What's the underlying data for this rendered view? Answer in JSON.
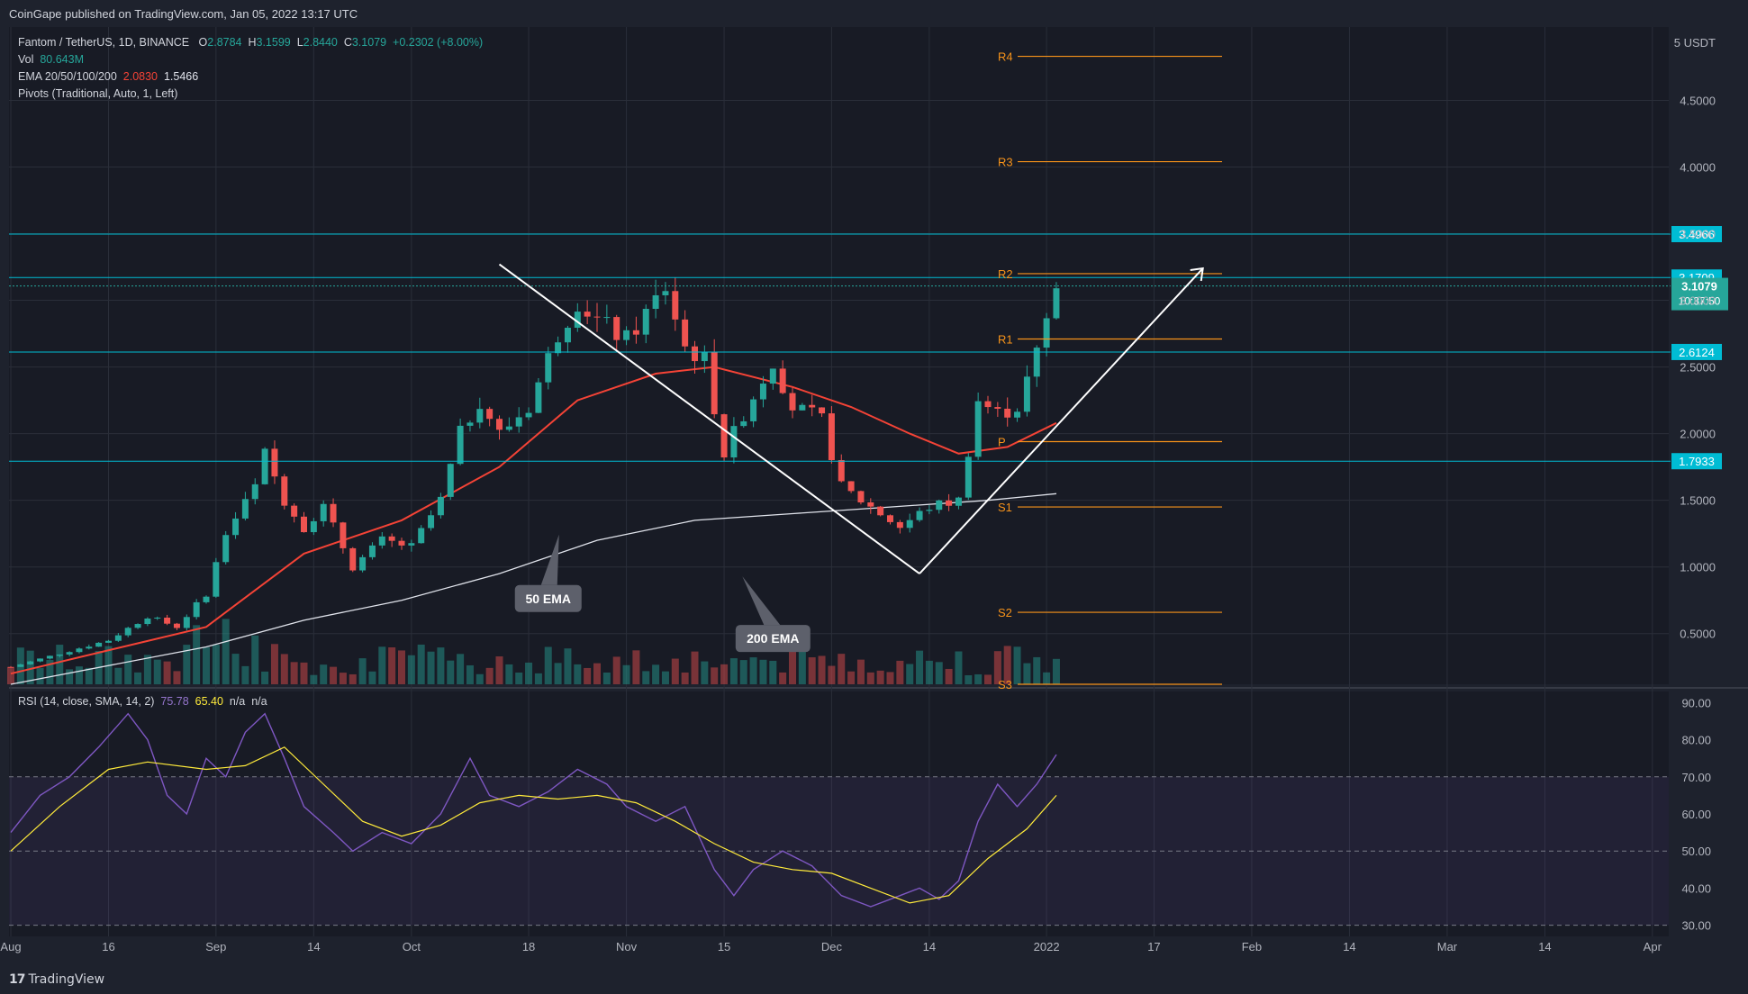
{
  "header": {
    "published": "CoinGape published on TradingView.com, Jan 05, 2022 13:17 UTC"
  },
  "legend": {
    "symbol": "Fantom / TetherUS, 1D, BINANCE",
    "ohlc": {
      "o_label": "O",
      "o": "2.8784",
      "h_label": "H",
      "h": "3.1599",
      "l_label": "L",
      "l": "2.8440",
      "c_label": "C",
      "c": "3.1079",
      "chg": "+0.2302 (+8.00%)"
    },
    "vol_label": "Vol",
    "vol": "80.643M",
    "ema_label": "EMA 20/50/100/200",
    "ema_50": "2.0830",
    "ema_200": "1.5466",
    "pivots": "Pivots (Traditional, Auto, 1, Left)"
  },
  "rsi_legend": {
    "label": "RSI (14, close, SMA, 14, 2)",
    "rsi": "75.78",
    "sma": "65.40",
    "na1": "n/a",
    "na2": "n/a"
  },
  "footer": {
    "brand": "TradingView",
    "logo_glyph": "17"
  },
  "colors": {
    "bg": "#1e222d",
    "up": "#26a69a",
    "down": "#ef5350",
    "ema50": "#f44336",
    "ema200": "#e0e3eb",
    "pivot": "#f7931a",
    "hline": "#00bcd4",
    "rsi": "#7e57c2",
    "rsi_sma": "#ffeb3b",
    "grid": "#2a2e39"
  },
  "chart_data": [
    {
      "type": "candlestick",
      "title": "Fantom / TetherUS, 1D, BINANCE",
      "price_axis": {
        "unit": "USDT",
        "top_label": "5",
        "ticks": [
          "0.5000",
          "1.0000",
          "1.5000",
          "2.0000",
          "2.5000",
          "3.0000",
          "3.5000",
          "4.0000",
          "4.5000"
        ],
        "ylim": [
          0.12,
          5.05
        ]
      },
      "time_axis": {
        "ticks": [
          {
            "label": "Aug",
            "day": 0
          },
          {
            "label": "16",
            "day": 10
          },
          {
            "label": "Sep",
            "day": 21
          },
          {
            "label": "14",
            "day": 31
          },
          {
            "label": "Oct",
            "day": 41
          },
          {
            "label": "18",
            "day": 53
          },
          {
            "label": "Nov",
            "day": 63
          },
          {
            "label": "15",
            "day": 73
          },
          {
            "label": "Dec",
            "day": 84
          },
          {
            "label": "14",
            "day": 94
          },
          {
            "label": "2022",
            "day": 106
          },
          {
            "label": "17",
            "day": 117
          },
          {
            "label": "Feb",
            "day": 127
          },
          {
            "label": "14",
            "day": 137
          },
          {
            "label": "Mar",
            "day": 147
          },
          {
            "label": "14",
            "day": 157
          },
          {
            "label": "Apr",
            "day": 168
          }
        ]
      },
      "key_levels": [
        {
          "label": "3.4966",
          "price": 3.4966
        },
        {
          "label": "3.1709",
          "price": 3.1709
        },
        {
          "label": "2.6124",
          "price": 2.6124
        },
        {
          "label": "1.7933",
          "price": 1.7933
        }
      ],
      "last_price": {
        "label": "3.1079",
        "price": 3.1079,
        "countdown": "10:37:50"
      },
      "pivots": [
        {
          "name": "R4",
          "price": 4.83
        },
        {
          "name": "R3",
          "price": 4.04
        },
        {
          "name": "R2",
          "price": 3.2
        },
        {
          "name": "R1",
          "price": 2.71
        },
        {
          "name": "P",
          "price": 1.94
        },
        {
          "name": "S1",
          "price": 1.45
        },
        {
          "name": "S2",
          "price": 0.66
        },
        {
          "name": "S3",
          "price": 0.12
        }
      ],
      "annotations": [
        {
          "text": "50 EMA",
          "day": 55,
          "price": 0.77
        },
        {
          "text": "200 EMA",
          "day": 78,
          "price": 0.47
        }
      ],
      "pattern_lines": [
        {
          "from": [
            50,
            3.27
          ],
          "to": [
            93,
            0.95
          ]
        },
        {
          "from": [
            93,
            0.95
          ],
          "to": [
            122,
            3.24
          ]
        }
      ],
      "anchors": [
        {
          "day": 0,
          "price": 0.25
        },
        {
          "day": 10,
          "price": 0.45
        },
        {
          "day": 14,
          "price": 0.63
        },
        {
          "day": 17,
          "price": 0.55
        },
        {
          "day": 20,
          "price": 0.8
        },
        {
          "day": 22,
          "price": 1.25
        },
        {
          "day": 25,
          "price": 1.6
        },
        {
          "day": 26,
          "price": 1.85
        },
        {
          "day": 28,
          "price": 1.5
        },
        {
          "day": 30,
          "price": 1.3
        },
        {
          "day": 32,
          "price": 1.45
        },
        {
          "day": 35,
          "price": 1.0
        },
        {
          "day": 38,
          "price": 1.2
        },
        {
          "day": 41,
          "price": 1.15
        },
        {
          "day": 44,
          "price": 1.5
        },
        {
          "day": 46,
          "price": 2.0
        },
        {
          "day": 48,
          "price": 2.25
        },
        {
          "day": 50,
          "price": 2.0
        },
        {
          "day": 53,
          "price": 2.2
        },
        {
          "day": 56,
          "price": 2.75
        },
        {
          "day": 58,
          "price": 3.0
        },
        {
          "day": 60,
          "price": 2.85
        },
        {
          "day": 63,
          "price": 2.7
        },
        {
          "day": 67,
          "price": 3.1
        },
        {
          "day": 69,
          "price": 2.65
        },
        {
          "day": 71,
          "price": 2.55
        },
        {
          "day": 73,
          "price": 1.85
        },
        {
          "day": 75,
          "price": 2.15
        },
        {
          "day": 78,
          "price": 2.55
        },
        {
          "day": 80,
          "price": 2.2
        },
        {
          "day": 83,
          "price": 2.1
        },
        {
          "day": 85,
          "price": 1.6
        },
        {
          "day": 88,
          "price": 1.45
        },
        {
          "day": 91,
          "price": 1.3
        },
        {
          "day": 94,
          "price": 1.45
        },
        {
          "day": 97,
          "price": 1.5
        },
        {
          "day": 99,
          "price": 2.25
        },
        {
          "day": 101,
          "price": 2.15
        },
        {
          "day": 103,
          "price": 2.2
        },
        {
          "day": 105,
          "price": 2.6
        },
        {
          "day": 107,
          "price": 3.1
        }
      ],
      "ema50": [
        {
          "day": 0,
          "price": 0.2
        },
        {
          "day": 20,
          "price": 0.55
        },
        {
          "day": 30,
          "price": 1.1
        },
        {
          "day": 40,
          "price": 1.35
        },
        {
          "day": 50,
          "price": 1.75
        },
        {
          "day": 58,
          "price": 2.25
        },
        {
          "day": 66,
          "price": 2.45
        },
        {
          "day": 72,
          "price": 2.5
        },
        {
          "day": 80,
          "price": 2.35
        },
        {
          "day": 86,
          "price": 2.2
        },
        {
          "day": 92,
          "price": 2.0
        },
        {
          "day": 97,
          "price": 1.85
        },
        {
          "day": 102,
          "price": 1.9
        },
        {
          "day": 107,
          "price": 2.08
        }
      ],
      "ema200": [
        {
          "day": 0,
          "price": 0.12
        },
        {
          "day": 20,
          "price": 0.4
        },
        {
          "day": 30,
          "price": 0.6
        },
        {
          "day": 40,
          "price": 0.75
        },
        {
          "day": 50,
          "price": 0.95
        },
        {
          "day": 60,
          "price": 1.2
        },
        {
          "day": 70,
          "price": 1.35
        },
        {
          "day": 80,
          "price": 1.4
        },
        {
          "day": 90,
          "price": 1.45
        },
        {
          "day": 100,
          "price": 1.5
        },
        {
          "day": 107,
          "price": 1.55
        }
      ]
    },
    {
      "type": "line",
      "title": "RSI (14, close, SMA, 14, 2)",
      "ylim": [
        27,
        93
      ],
      "ticks": [
        "30.00",
        "40.00",
        "50.00",
        "60.00",
        "70.00",
        "80.00",
        "90.00"
      ],
      "bands": {
        "upper": 70,
        "middle": 50,
        "lower": 30
      },
      "series": [
        {
          "key": "rsi",
          "values": [
            {
              "day": 0,
              "v": 55
            },
            {
              "day": 3,
              "v": 65
            },
            {
              "day": 6,
              "v": 70
            },
            {
              "day": 9,
              "v": 78
            },
            {
              "day": 12,
              "v": 87
            },
            {
              "day": 14,
              "v": 80
            },
            {
              "day": 16,
              "v": 65
            },
            {
              "day": 18,
              "v": 60
            },
            {
              "day": 20,
              "v": 75
            },
            {
              "day": 22,
              "v": 70
            },
            {
              "day": 24,
              "v": 82
            },
            {
              "day": 26,
              "v": 87
            },
            {
              "day": 28,
              "v": 75
            },
            {
              "day": 30,
              "v": 62
            },
            {
              "day": 33,
              "v": 55
            },
            {
              "day": 35,
              "v": 50
            },
            {
              "day": 38,
              "v": 55
            },
            {
              "day": 41,
              "v": 52
            },
            {
              "day": 44,
              "v": 60
            },
            {
              "day": 47,
              "v": 75
            },
            {
              "day": 49,
              "v": 65
            },
            {
              "day": 52,
              "v": 62
            },
            {
              "day": 55,
              "v": 66
            },
            {
              "day": 58,
              "v": 72
            },
            {
              "day": 61,
              "v": 68
            },
            {
              "day": 63,
              "v": 62
            },
            {
              "day": 66,
              "v": 58
            },
            {
              "day": 69,
              "v": 62
            },
            {
              "day": 72,
              "v": 45
            },
            {
              "day": 74,
              "v": 38
            },
            {
              "day": 76,
              "v": 45
            },
            {
              "day": 79,
              "v": 50
            },
            {
              "day": 82,
              "v": 46
            },
            {
              "day": 85,
              "v": 38
            },
            {
              "day": 88,
              "v": 35
            },
            {
              "day": 91,
              "v": 38
            },
            {
              "day": 93,
              "v": 40
            },
            {
              "day": 95,
              "v": 37
            },
            {
              "day": 97,
              "v": 42
            },
            {
              "day": 99,
              "v": 58
            },
            {
              "day": 101,
              "v": 68
            },
            {
              "day": 103,
              "v": 62
            },
            {
              "day": 105,
              "v": 68
            },
            {
              "day": 107,
              "v": 76
            }
          ]
        },
        {
          "key": "sma",
          "values": [
            {
              "day": 0,
              "v": 50
            },
            {
              "day": 5,
              "v": 62
            },
            {
              "day": 10,
              "v": 72
            },
            {
              "day": 14,
              "v": 74
            },
            {
              "day": 20,
              "v": 72
            },
            {
              "day": 24,
              "v": 73
            },
            {
              "day": 28,
              "v": 78
            },
            {
              "day": 32,
              "v": 68
            },
            {
              "day": 36,
              "v": 58
            },
            {
              "day": 40,
              "v": 54
            },
            {
              "day": 44,
              "v": 57
            },
            {
              "day": 48,
              "v": 63
            },
            {
              "day": 52,
              "v": 65
            },
            {
              "day": 56,
              "v": 64
            },
            {
              "day": 60,
              "v": 65
            },
            {
              "day": 64,
              "v": 63
            },
            {
              "day": 68,
              "v": 58
            },
            {
              "day": 72,
              "v": 52
            },
            {
              "day": 76,
              "v": 47
            },
            {
              "day": 80,
              "v": 45
            },
            {
              "day": 84,
              "v": 44
            },
            {
              "day": 88,
              "v": 40
            },
            {
              "day": 92,
              "v": 36
            },
            {
              "day": 96,
              "v": 38
            },
            {
              "day": 100,
              "v": 48
            },
            {
              "day": 104,
              "v": 56
            },
            {
              "day": 107,
              "v": 65
            }
          ]
        }
      ]
    }
  ]
}
